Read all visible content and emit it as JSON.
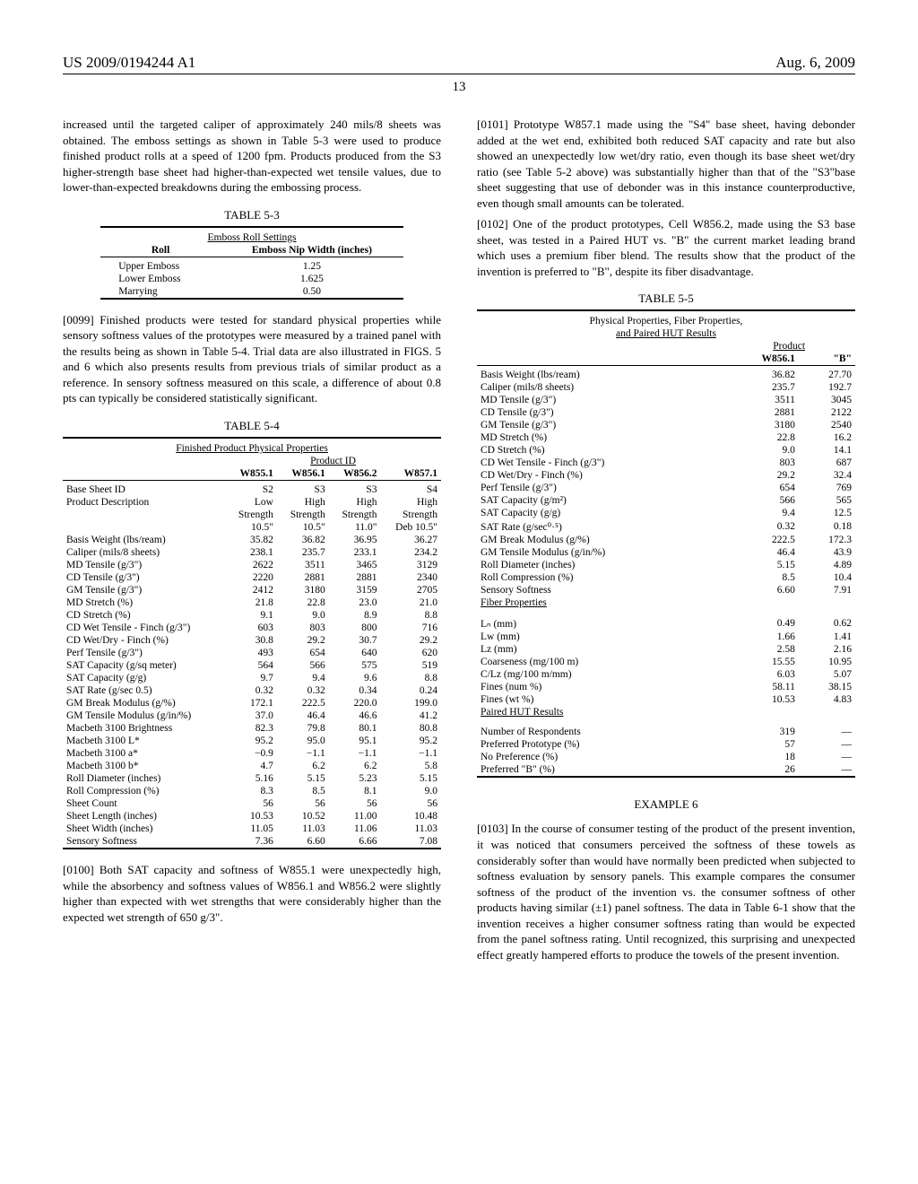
{
  "header": {
    "pub_number": "US 2009/0194244 A1",
    "pub_date": "Aug. 6, 2009",
    "page_number": "13"
  },
  "left": {
    "intro_para": "increased until the targeted caliper of approximately 240 mils/8 sheets was obtained. The emboss settings as shown in Table 5-3 were used to produce finished product rolls at a speed of 1200 fpm. Products produced from the S3 higher-strength base sheet had higher-than-expected wet tensile values, due to lower-than-expected breakdowns during the embossing process.",
    "table53": {
      "caption": "TABLE 5-3",
      "subtitle": "Emboss Roll Settings",
      "col_labels": [
        "Roll",
        "Emboss Nip Width (inches)"
      ],
      "rows": [
        [
          "Upper Emboss",
          "1.25"
        ],
        [
          "Lower Emboss",
          "1.625"
        ],
        [
          "Marrying",
          "0.50"
        ]
      ]
    },
    "para0099_num": "[0099]",
    "para0099": "   Finished products were tested for standard physical properties while sensory softness values of the prototypes were measured by a trained panel with the results being as shown in Table 5-4. Trial data are also illustrated in FIGS. 5 and 6 which also presents results from previous trials of similar product as a reference. In sensory softness measured on this scale, a difference of about 0.8 pts can typically be considered statistically significant.",
    "table54": {
      "caption": "TABLE 5-4",
      "subtitle": "Finished Product Physical Properties",
      "product_id_label": "Product ID",
      "col_headers": [
        "",
        "W855.1",
        "W856.1",
        "W856.2",
        "W857.1"
      ],
      "rows": [
        [
          "Base Sheet ID",
          "S2",
          "S3",
          "S3",
          "S4"
        ],
        [
          "Product Description",
          "Low",
          "High",
          "High",
          "High"
        ],
        [
          "",
          "Strength",
          "Strength",
          "Strength",
          "Strength"
        ],
        [
          "",
          "10.5\"",
          "10.5\"",
          "11.0\"",
          "Deb 10.5\""
        ],
        [
          "Basis Weight (lbs/ream)",
          "35.82",
          "36.82",
          "36.95",
          "36.27"
        ],
        [
          "Caliper (mils/8 sheets)",
          "238.1",
          "235.7",
          "233.1",
          "234.2"
        ],
        [
          "MD Tensile (g/3\")",
          "2622",
          "3511",
          "3465",
          "3129"
        ],
        [
          "CD Tensile (g/3\")",
          "2220",
          "2881",
          "2881",
          "2340"
        ],
        [
          "GM Tensile (g/3\")",
          "2412",
          "3180",
          "3159",
          "2705"
        ],
        [
          "MD Stretch (%)",
          "21.8",
          "22.8",
          "23.0",
          "21.0"
        ],
        [
          "CD Stretch (%)",
          "9.1",
          "9.0",
          "8.9",
          "8.8"
        ],
        [
          "CD Wet Tensile - Finch (g/3\")",
          "603",
          "803",
          "800",
          "716"
        ],
        [
          "CD Wet/Dry - Finch (%)",
          "30.8",
          "29.2",
          "30.7",
          "29.2"
        ],
        [
          "Perf Tensile (g/3\")",
          "493",
          "654",
          "640",
          "620"
        ],
        [
          "SAT Capacity (g/sq meter)",
          "564",
          "566",
          "575",
          "519"
        ],
        [
          "SAT Capacity (g/g)",
          "9.7",
          "9.4",
          "9.6",
          "8.8"
        ],
        [
          "SAT Rate (g/sec 0.5)",
          "0.32",
          "0.32",
          "0.34",
          "0.24"
        ],
        [
          "GM Break Modulus (g/%)",
          "172.1",
          "222.5",
          "220.0",
          "199.0"
        ],
        [
          "GM Tensile Modulus (g/in/%)",
          "37.0",
          "46.4",
          "46.6",
          "41.2"
        ],
        [
          "Macbeth 3100 Brightness",
          "82.3",
          "79.8",
          "80.1",
          "80.8"
        ],
        [
          "Macbeth 3100 L*",
          "95.2",
          "95.0",
          "95.1",
          "95.2"
        ],
        [
          "Macbeth 3100 a*",
          "−0.9",
          "−1.1",
          "−1.1",
          "−1.1"
        ],
        [
          "Macbeth 3100 b*",
          "4.7",
          "6.2",
          "6.2",
          "5.8"
        ],
        [
          "Roll Diameter (inches)",
          "5.16",
          "5.15",
          "5.23",
          "5.15"
        ],
        [
          "Roll Compression (%)",
          "8.3",
          "8.5",
          "8.1",
          "9.0"
        ],
        [
          "Sheet Count",
          "56",
          "56",
          "56",
          "56"
        ],
        [
          "Sheet Length (inches)",
          "10.53",
          "10.52",
          "11.00",
          "10.48"
        ],
        [
          "Sheet Width (inches)",
          "11.05",
          "11.03",
          "11.06",
          "11.03"
        ],
        [
          "Sensory Softness",
          "7.36",
          "6.60",
          "6.66",
          "7.08"
        ]
      ]
    },
    "para0100_num": "[0100]",
    "para0100": "   Both SAT capacity and softness of W855.1 were unexpectedly high, while the absorbency and softness values of W856.1 and W856.2 were slightly higher than expected with wet strengths that were considerably higher than the expected wet strength of 650 g/3\"."
  },
  "right": {
    "para0101_num": "[0101]",
    "para0101": "   Prototype W857.1 made using the \"S4\" base sheet, having debonder added at the wet end, exhibited both reduced SAT capacity and rate but also showed an unexpectedly low wet/dry ratio, even though its base sheet wet/dry ratio (see Table 5-2 above) was substantially higher than that of the \"S3\"base sheet suggesting that use of debonder was in this instance counterproductive, even though small amounts can be tolerated.",
    "para0102_num": "[0102]",
    "para0102": "   One of the product prototypes, Cell W856.2, made using the S3 base sheet, was tested in a Paired HUT vs. \"B\" the current market leading brand which uses a premium fiber blend. The results show that the product of the invention is preferred to \"B\", despite its fiber disadvantage.",
    "table55": {
      "caption": "TABLE 5-5",
      "subtitle1": "Physical Properties, Fiber Properties,",
      "subtitle2": "and Paired HUT Results",
      "product_label": "Product",
      "col_headers": [
        "",
        "W856.1",
        "\"B\""
      ],
      "rows_phys": [
        [
          "Basis Weight (lbs/ream)",
          "36.82",
          "27.70"
        ],
        [
          "Caliper (mils/8 sheets)",
          "235.7",
          "192.7"
        ],
        [
          "MD Tensile (g/3\")",
          "3511",
          "3045"
        ],
        [
          "CD Tensile (g/3\")",
          "2881",
          "2122"
        ],
        [
          "GM Tensile (g/3\")",
          "3180",
          "2540"
        ],
        [
          "MD Stretch (%)",
          "22.8",
          "16.2"
        ],
        [
          "CD Stretch (%)",
          "9.0",
          "14.1"
        ],
        [
          "CD Wet Tensile - Finch (g/3\")",
          "803",
          "687"
        ],
        [
          "CD Wet/Dry - Finch (%)",
          "29.2",
          "32.4"
        ],
        [
          "Perf Tensile (g/3\")",
          "654",
          "769"
        ],
        [
          "SAT Capacity (g/m²)",
          "566",
          "565"
        ],
        [
          "SAT Capacity (g/g)",
          "9.4",
          "12.5"
        ],
        [
          "SAT Rate (g/sec⁰·⁵)",
          "0.32",
          "0.18"
        ],
        [
          "GM Break Modulus (g/%)",
          "222.5",
          "172.3"
        ],
        [
          "GM Tensile Modulus (g/in/%)",
          "46.4",
          "43.9"
        ],
        [
          "Roll Diameter (inches)",
          "5.15",
          "4.89"
        ],
        [
          "Roll Compression (%)",
          "8.5",
          "10.4"
        ],
        [
          "Sensory Softness",
          "6.60",
          "7.91"
        ]
      ],
      "fiber_label": "Fiber Properties",
      "rows_fiber": [
        [
          "Lₙ (mm)",
          "0.49",
          "0.62"
        ],
        [
          "Lw (mm)",
          "1.66",
          "1.41"
        ],
        [
          "Lz (mm)",
          "2.58",
          "2.16"
        ],
        [
          "Coarseness (mg/100 m)",
          "15.55",
          "10.95"
        ],
        [
          "C/Lz (mg/100 m/mm)",
          "6.03",
          "5.07"
        ],
        [
          "Fines (num %)",
          "58.11",
          "38.15"
        ],
        [
          "Fines (wt %)",
          "10.53",
          "4.83"
        ]
      ],
      "hut_label": "Paired HUT Results",
      "rows_hut": [
        [
          "Number of Respondents",
          "319",
          "—"
        ],
        [
          "Preferred Prototype (%)",
          "57",
          "—"
        ],
        [
          "No Preference (%)",
          "18",
          "—"
        ],
        [
          "Preferred \"B\" (%)",
          "26",
          "—"
        ]
      ]
    },
    "example6": "EXAMPLE 6",
    "para0103_num": "[0103]",
    "para0103": "   In the course of consumer testing of the product of the present invention, it was noticed that consumers perceived the softness of these towels as considerably softer than would have normally been predicted when subjected to softness evaluation by sensory panels. This example compares the consumer softness of the product of the invention vs. the consumer softness of other products having similar (±1) panel softness. The data in Table 6-1 show that the invention receives a higher consumer softness rating than would be expected from the panel softness rating. Until recognized, this surprising and unexpected effect greatly hampered efforts to produce the towels of the present invention."
  }
}
